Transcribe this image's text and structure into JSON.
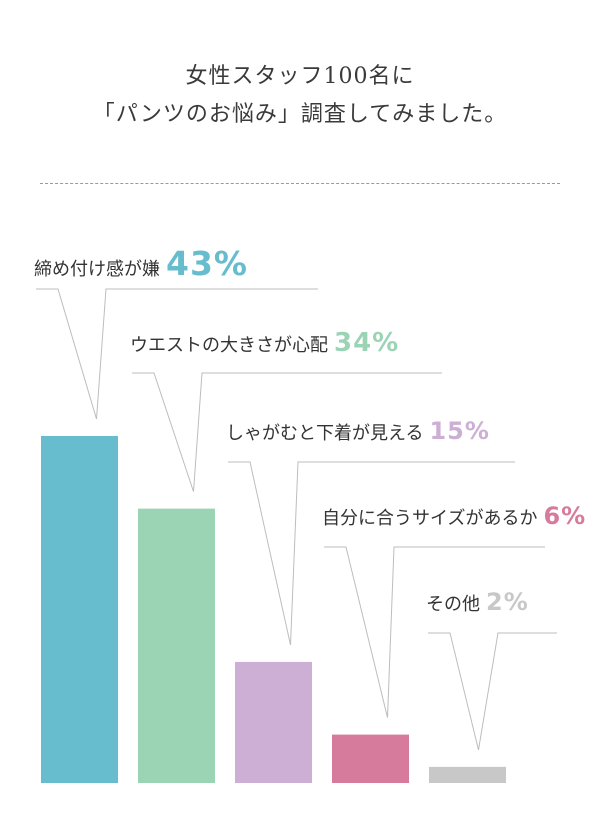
{
  "title": {
    "line1": "女性スタッフ100名に",
    "line2": "「パンツのお悩み」調査してみました。"
  },
  "chart_data": {
    "type": "bar",
    "categories": [
      "締め付け感が嫌",
      "ウエストの大きさが心配",
      "しゃがむと下着が見える",
      "自分に合うサイズがあるか",
      "その他"
    ],
    "values": [
      43,
      34,
      15,
      6,
      2
    ],
    "value_labels": [
      "43%",
      "34%",
      "15%",
      "6%",
      "2%"
    ],
    "colors": [
      "#67bccd",
      "#9bd3b5",
      "#cdafd5",
      "#d77b9d",
      "#c8c8c8"
    ],
    "ylim": [
      0,
      45
    ],
    "grid": false,
    "legend": "none"
  }
}
